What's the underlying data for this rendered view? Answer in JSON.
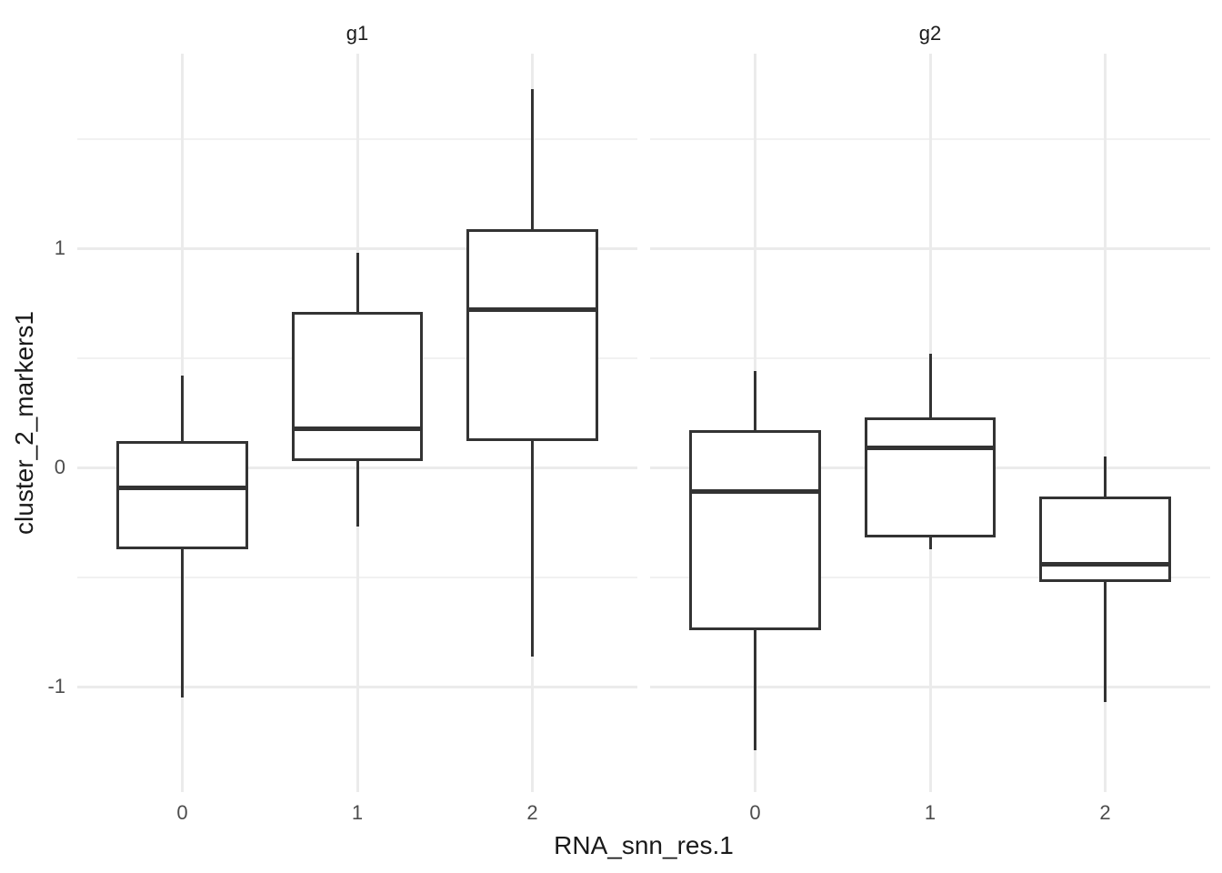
{
  "figure": {
    "background": "#ffffff"
  },
  "chart_data": {
    "type": "boxplot",
    "title": "",
    "xlabel": "RNA_snn_res.1",
    "ylabel": "cluster_2_markers1",
    "ylim": [
      -1.48,
      1.89
    ],
    "grid": "on",
    "legend": "none",
    "colors": {
      "box_stroke": "#333333",
      "box_fill": "#ffffff",
      "grid_major": "#ebebeb",
      "grid_minor": "#f1f1f1",
      "tick_label": "#4d4d4d",
      "title_text": "#1a1a1a"
    },
    "y_axis": {
      "ticks": [
        {
          "label": "1",
          "value": 1
        },
        {
          "label": "0",
          "value": 0
        },
        {
          "label": "-1",
          "value": -1
        }
      ],
      "minor_gridlines": [
        1.5,
        0.5,
        -0.5
      ]
    },
    "facets": [
      {
        "label": "g1",
        "categories": [
          "0",
          "1",
          "2"
        ],
        "boxes": [
          {
            "category": "0",
            "whisker_low": -1.05,
            "q1": -0.37,
            "median": -0.09,
            "q3": 0.12,
            "whisker_high": 0.42
          },
          {
            "category": "1",
            "whisker_low": -0.27,
            "q1": 0.03,
            "median": 0.18,
            "q3": 0.71,
            "whisker_high": 0.98
          },
          {
            "category": "2",
            "whisker_low": -0.86,
            "q1": 0.12,
            "median": 0.72,
            "q3": 1.09,
            "whisker_high": 1.73
          }
        ]
      },
      {
        "label": "g2",
        "categories": [
          "0",
          "1",
          "2"
        ],
        "boxes": [
          {
            "category": "0",
            "whisker_low": -1.29,
            "q1": -0.74,
            "median": -0.11,
            "q3": 0.17,
            "whisker_high": 0.44
          },
          {
            "category": "1",
            "whisker_low": -0.37,
            "q1": -0.32,
            "median": 0.09,
            "q3": 0.23,
            "whisker_high": 0.52
          },
          {
            "category": "2",
            "whisker_low": -1.07,
            "q1": -0.52,
            "median": -0.44,
            "q3": -0.13,
            "whisker_high": 0.05
          }
        ]
      }
    ]
  }
}
